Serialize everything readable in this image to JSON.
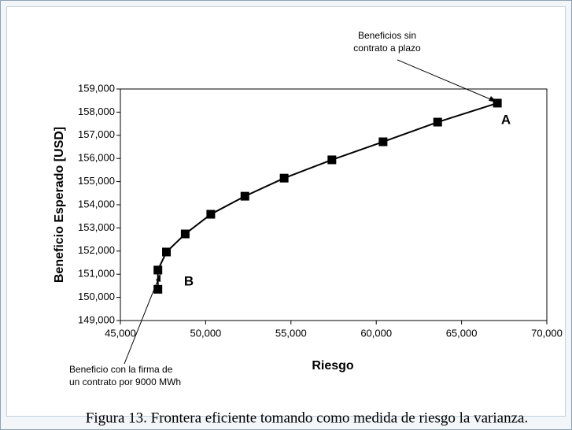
{
  "chart_data": {
    "type": "line",
    "x_label": "Riesgo",
    "y_label": "Beneficio Esperado [USD]",
    "caption": "Figura 13. Frontera eficiente tomando como medida de riesgo la varianza.",
    "x": [
      47200,
      47200,
      47700,
      48800,
      50300,
      52300,
      54600,
      57400,
      60400,
      63600,
      67100
    ],
    "series": [
      {
        "name": "Frontera eficiente",
        "color": "#000000",
        "values": [
          150350,
          151180,
          151960,
          152740,
          153590,
          154370,
          155150,
          155940,
          156720,
          157570,
          158390
        ]
      }
    ],
    "xlim": [
      45000,
      70000
    ],
    "xticks": [
      {
        "value": 45000,
        "label": "45,000"
      },
      {
        "value": 50000,
        "label": "50,000"
      },
      {
        "value": 55000,
        "label": "55,000"
      },
      {
        "value": 60000,
        "label": "60,000"
      },
      {
        "value": 65000,
        "label": "65,000"
      },
      {
        "value": 70000,
        "label": "70,000"
      }
    ],
    "ylim": [
      149000,
      159000
    ],
    "yticks": [
      {
        "value": 149000,
        "label": "149,000"
      },
      {
        "value": 150000,
        "label": "150,000"
      },
      {
        "value": 151000,
        "label": "151,000"
      },
      {
        "value": 152000,
        "label": "152,000"
      },
      {
        "value": 153000,
        "label": "153,000"
      },
      {
        "value": 154000,
        "label": "154,000"
      },
      {
        "value": 155000,
        "label": "155,000"
      },
      {
        "value": 156000,
        "label": "156,000"
      },
      {
        "value": 157000,
        "label": "157,000"
      },
      {
        "value": 158000,
        "label": "158,000"
      },
      {
        "value": 159000,
        "label": "159,000"
      }
    ],
    "annotations": [
      {
        "lines": [
          "Beneficios sin",
          "contrato a plazo"
        ]
      },
      {
        "lines": [
          "A"
        ]
      },
      {
        "lines": [
          "B"
        ]
      },
      {
        "lines": [
          "Beneficio con la firma de",
          "un contrato por 9000 MWh"
        ]
      }
    ]
  }
}
